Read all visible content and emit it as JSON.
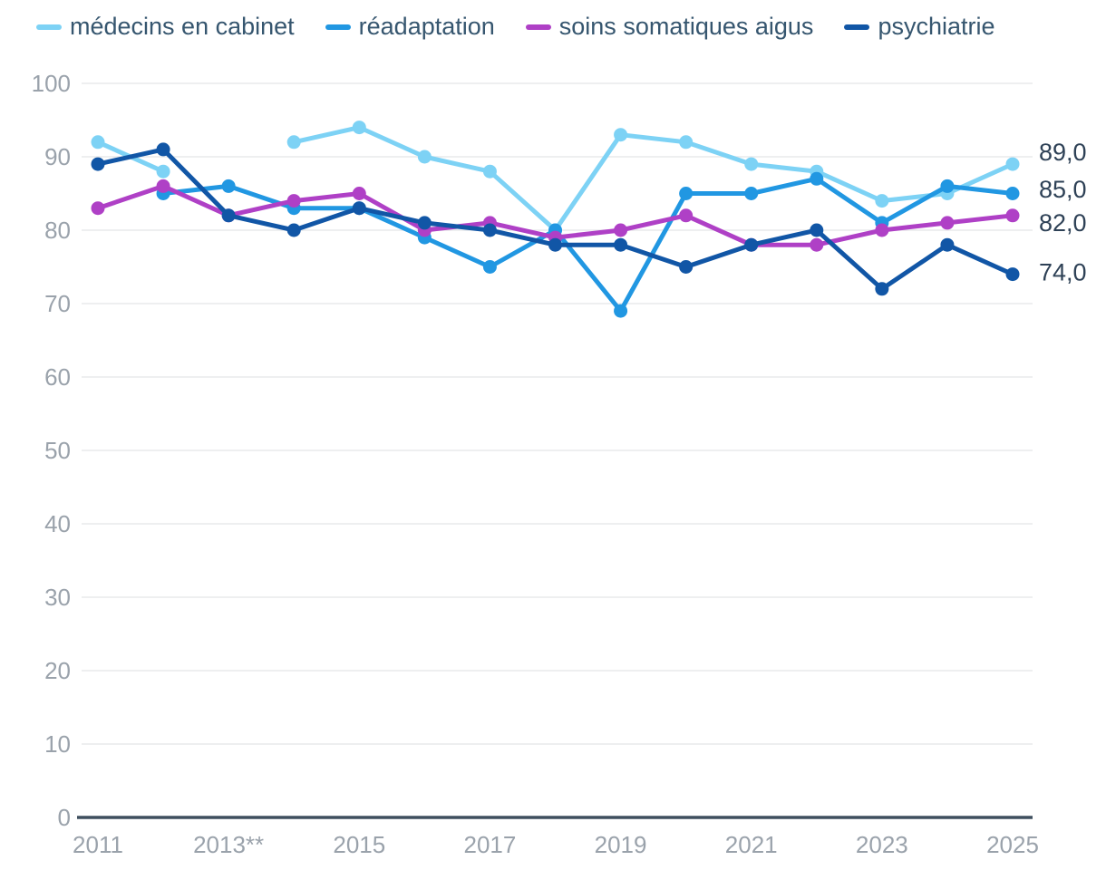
{
  "chart_data": {
    "type": "line",
    "x": [
      2011,
      2012,
      2013,
      2014,
      2015,
      2016,
      2017,
      2018,
      2019,
      2020,
      2021,
      2022,
      2023,
      2024,
      2025
    ],
    "series": [
      {
        "name": "médecins en cabinet",
        "color": "#7DD2F5",
        "values": [
          92,
          88,
          null,
          92,
          94,
          90,
          88,
          80,
          93,
          92,
          89,
          88,
          84,
          85,
          89
        ],
        "end_label": "89,0"
      },
      {
        "name": "réadaptation",
        "color": "#2197E2",
        "values": [
          null,
          85,
          86,
          83,
          83,
          79,
          75,
          80,
          69,
          85,
          85,
          87,
          81,
          86,
          85
        ],
        "end_label": "85,0"
      },
      {
        "name": "soins somatiques aigus",
        "color": "#AF40C6",
        "values": [
          83,
          86,
          82,
          84,
          85,
          80,
          81,
          79,
          80,
          82,
          78,
          78,
          80,
          81,
          82
        ],
        "end_label": "82,0"
      },
      {
        "name": "psychiatrie",
        "color": "#1156A6",
        "values": [
          89,
          91,
          82,
          80,
          83,
          81,
          80,
          78,
          78,
          75,
          78,
          80,
          72,
          78,
          74
        ],
        "end_label": "74,0"
      }
    ],
    "title": "",
    "xlabel": "",
    "ylabel": "",
    "ylim": [
      0,
      100
    ],
    "y_ticks": [
      0,
      10,
      20,
      30,
      40,
      50,
      60,
      70,
      80,
      90,
      100
    ],
    "x_ticks": [
      {
        "year": 2011,
        "label": "2011"
      },
      {
        "year": 2013,
        "label": "2013**"
      },
      {
        "year": 2015,
        "label": "2015"
      },
      {
        "year": 2017,
        "label": "2017"
      },
      {
        "year": 2019,
        "label": "2019"
      },
      {
        "year": 2021,
        "label": "2021"
      },
      {
        "year": 2023,
        "label": "2023"
      },
      {
        "year": 2025,
        "label": "2025"
      }
    ],
    "grid": "horizontal",
    "legend_position": "top",
    "colors": {
      "grid": "#E9EAEB",
      "axis": "#3E4F5E",
      "tick_label": "#9AA2AB",
      "end_label": "#2E4156",
      "legend_text": "#36566F",
      "background": "#FFFFFF"
    }
  }
}
